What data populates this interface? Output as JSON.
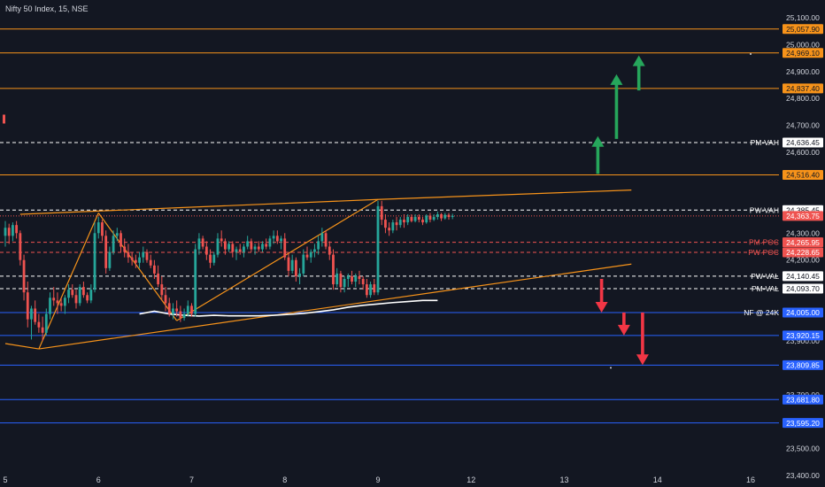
{
  "header": {
    "title": "Nifty 50 Index, 15, NSE"
  },
  "colors": {
    "background": "#131722",
    "up": "#26a69a",
    "down": "#ef5350",
    "orange": "#f7931a",
    "blue": "#2962ff",
    "green": "#26a65b",
    "red": "#f23645",
    "white": "#ffffff",
    "text": "#d1d4dc"
  },
  "chart_data": {
    "type": "candlestick",
    "ylim": [
      23350,
      25150
    ],
    "y_ticks": [
      {
        "v": 25100,
        "label": "25,100.00"
      },
      {
        "v": 25000,
        "label": "25,000.00"
      },
      {
        "v": 24900,
        "label": "24,900.00"
      },
      {
        "v": 24800,
        "label": "24,800.00"
      },
      {
        "v": 24700,
        "label": "24,700.00"
      },
      {
        "v": 24600,
        "label": "24,600.00"
      },
      {
        "v": 24300,
        "label": "24,300.00"
      },
      {
        "v": 24200,
        "label": "24,200.00"
      },
      {
        "v": 23900,
        "label": "23,900.00"
      },
      {
        "v": 23700,
        "label": "23,700.00"
      },
      {
        "v": 23600,
        "label": "23,600.00"
      },
      {
        "v": 23500,
        "label": "23,500.00"
      },
      {
        "v": 23400,
        "label": "23,400.00"
      }
    ],
    "x_ticks": [
      {
        "i": 0,
        "label": "5"
      },
      {
        "i": 25,
        "label": "6"
      },
      {
        "i": 50,
        "label": "7"
      },
      {
        "i": 75,
        "label": "8"
      },
      {
        "i": 100,
        "label": "9"
      },
      {
        "i": 125,
        "label": "12"
      },
      {
        "i": 150,
        "label": "13"
      },
      {
        "i": 175,
        "label": "14"
      },
      {
        "i": 200,
        "label": "16"
      }
    ],
    "levels": [
      {
        "v": 25057.9,
        "label": "25,057.90",
        "name": "",
        "color": "#f7931a",
        "style": "solid",
        "label_style": "fill"
      },
      {
        "v": 24969.1,
        "label": "24,969.10",
        "name": "",
        "color": "#f7931a",
        "style": "solid",
        "label_style": "fill"
      },
      {
        "v": 24837.4,
        "label": "24,837.40",
        "name": "",
        "color": "#f7931a",
        "style": "solid",
        "label_style": "fill"
      },
      {
        "v": 24636.45,
        "label": "24,636.45",
        "name": "PM-VAH",
        "color": "#ffffff",
        "style": "dashed",
        "label_style": "outline"
      },
      {
        "v": 24516.4,
        "label": "24,516.40",
        "name": "",
        "color": "#f7931a",
        "style": "solid",
        "label_style": "fill"
      },
      {
        "v": 24385.45,
        "label": "24,385.45",
        "name": "PW-VAH",
        "color": "#ffffff",
        "style": "dashed",
        "label_style": "outline"
      },
      {
        "v": 24363.75,
        "label": "24,363.75",
        "name": "",
        "color": "#ef5350",
        "style": "dotted",
        "label_style": "fill"
      },
      {
        "v": 24265.95,
        "label": "24,265.95",
        "name": "PM-POC",
        "color": "#ef5350",
        "style": "dashed",
        "label_style": "fill"
      },
      {
        "v": 24228.65,
        "label": "24,228.65",
        "name": "PW-POC",
        "color": "#ef5350",
        "style": "dashed",
        "label_style": "fill"
      },
      {
        "v": 24140.45,
        "label": "24,140.45",
        "name": "PW-VAL",
        "color": "#ffffff",
        "style": "dashed",
        "label_style": "outline"
      },
      {
        "v": 24093.7,
        "label": "24,093.70",
        "name": "PM-VAL",
        "color": "#ffffff",
        "style": "dashed",
        "label_style": "outline"
      },
      {
        "v": 24005.0,
        "label": "24,005.00",
        "name": "NF @ 24K",
        "color": "#2962ff",
        "style": "solid",
        "label_style": "fill"
      },
      {
        "v": 23920.15,
        "label": "23,920.15",
        "name": "",
        "color": "#2962ff",
        "style": "solid",
        "label_style": "fill"
      },
      {
        "v": 23809.85,
        "label": "23,809.85",
        "name": "",
        "color": "#2962ff",
        "style": "solid",
        "label_style": "fill"
      },
      {
        "v": 23681.8,
        "label": "23,681.80",
        "name": "",
        "color": "#2962ff",
        "style": "solid",
        "label_style": "fill"
      },
      {
        "v": 23595.2,
        "label": "23,595.20",
        "name": "",
        "color": "#2962ff",
        "style": "solid",
        "label_style": "fill"
      }
    ],
    "candles": [
      [
        24290,
        24345,
        24250,
        24320
      ],
      [
        24320,
        24335,
        24260,
        24290
      ],
      [
        24290,
        24340,
        24270,
        24330
      ],
      [
        24330,
        24345,
        24280,
        24300
      ],
      [
        24300,
        24310,
        24180,
        24200
      ],
      [
        24200,
        24220,
        24050,
        24080
      ],
      [
        24080,
        24120,
        23950,
        23980
      ],
      [
        23980,
        24030,
        23905,
        24020
      ],
      [
        24020,
        24050,
        23960,
        23970
      ],
      [
        23970,
        24000,
        23930,
        23950
      ],
      [
        23950,
        23990,
        23900,
        23930
      ],
      [
        23930,
        24020,
        23920,
        24000
      ],
      [
        24000,
        24080,
        23980,
        24060
      ],
      [
        24060,
        24100,
        24030,
        24050
      ],
      [
        24050,
        24080,
        24000,
        24040
      ],
      [
        24040,
        24060,
        24010,
        24030
      ],
      [
        24030,
        24070,
        24000,
        24060
      ],
      [
        24060,
        24110,
        24040,
        24090
      ],
      [
        24090,
        24110,
        24060,
        24070
      ],
      [
        24070,
        24090,
        24020,
        24040
      ],
      [
        24040,
        24110,
        24030,
        24100
      ],
      [
        24100,
        24120,
        24060,
        24070
      ],
      [
        24070,
        24080,
        24040,
        24050
      ],
      [
        24050,
        24110,
        24040,
        24090
      ],
      [
        24090,
        24340,
        24080,
        24300
      ],
      [
        24300,
        24360,
        24280,
        24340
      ],
      [
        24340,
        24350,
        24270,
        24290
      ],
      [
        24290,
        24310,
        24150,
        24170
      ],
      [
        24170,
        24250,
        24160,
        24230
      ],
      [
        24230,
        24310,
        24220,
        24290
      ],
      [
        24290,
        24320,
        24270,
        24300
      ],
      [
        24300,
        24310,
        24230,
        24250
      ],
      [
        24250,
        24280,
        24210,
        24230
      ],
      [
        24230,
        24260,
        24190,
        24210
      ],
      [
        24210,
        24230,
        24180,
        24200
      ],
      [
        24200,
        24220,
        24170,
        24190
      ],
      [
        24190,
        24230,
        24170,
        24210
      ],
      [
        24210,
        24250,
        24190,
        24230
      ],
      [
        24230,
        24240,
        24190,
        24200
      ],
      [
        24200,
        24220,
        24170,
        24180
      ],
      [
        24180,
        24200,
        24130,
        24150
      ],
      [
        24150,
        24180,
        24100,
        24110
      ],
      [
        24110,
        24140,
        24050,
        24070
      ],
      [
        24070,
        24100,
        24010,
        24040
      ],
      [
        24040,
        24060,
        23990,
        24000
      ],
      [
        24000,
        24040,
        23980,
        24020
      ],
      [
        24020,
        24050,
        23990,
        24010
      ],
      [
        24010,
        24030,
        23970,
        23985
      ],
      [
        23985,
        24020,
        23975,
        24000
      ],
      [
        24000,
        24050,
        23990,
        24030
      ],
      [
        24030,
        24040,
        23990,
        24000
      ],
      [
        24000,
        24260,
        23990,
        24240
      ],
      [
        24240,
        24300,
        24220,
        24280
      ],
      [
        24280,
        24290,
        24240,
        24250
      ],
      [
        24250,
        24270,
        24200,
        24220
      ],
      [
        24220,
        24240,
        24170,
        24190
      ],
      [
        24190,
        24230,
        24180,
        24220
      ],
      [
        24220,
        24300,
        24210,
        24280
      ],
      [
        24280,
        24310,
        24250,
        24270
      ],
      [
        24270,
        24280,
        24220,
        24240
      ],
      [
        24240,
        24270,
        24230,
        24260
      ],
      [
        24260,
        24270,
        24210,
        24230
      ],
      [
        24230,
        24250,
        24200,
        24240
      ],
      [
        24240,
        24260,
        24220,
        24230
      ],
      [
        24230,
        24260,
        24210,
        24250
      ],
      [
        24250,
        24290,
        24240,
        24270
      ],
      [
        24270,
        24280,
        24230,
        24240
      ],
      [
        24240,
        24260,
        24220,
        24250
      ],
      [
        24250,
        24270,
        24230,
        24240
      ],
      [
        24240,
        24270,
        24230,
        24260
      ],
      [
        24260,
        24280,
        24240,
        24250
      ],
      [
        24250,
        24290,
        24240,
        24280
      ],
      [
        24280,
        24310,
        24260,
        24290
      ],
      [
        24290,
        24310,
        24260,
        24270
      ],
      [
        24270,
        24290,
        24240,
        24280
      ],
      [
        24280,
        24300,
        24200,
        24210
      ],
      [
        24210,
        24230,
        24140,
        24160
      ],
      [
        24160,
        24220,
        24150,
        24200
      ],
      [
        24200,
        24210,
        24120,
        24140
      ],
      [
        24140,
        24170,
        24110,
        24150
      ],
      [
        24150,
        24240,
        24140,
        24220
      ],
      [
        24220,
        24250,
        24200,
        24210
      ],
      [
        24210,
        24240,
        24190,
        24230
      ],
      [
        24230,
        24260,
        24210,
        24240
      ],
      [
        24240,
        24290,
        24220,
        24270
      ],
      [
        24270,
        24320,
        24250,
        24300
      ],
      [
        24300,
        24310,
        24240,
        24250
      ],
      [
        24250,
        24270,
        24200,
        24220
      ],
      [
        24220,
        24240,
        24090,
        24110
      ],
      [
        24110,
        24170,
        24100,
        24150
      ],
      [
        24150,
        24160,
        24080,
        24100
      ],
      [
        24100,
        24140,
        24080,
        24130
      ],
      [
        24130,
        24150,
        24100,
        24140
      ],
      [
        24140,
        24160,
        24110,
        24120
      ],
      [
        24120,
        24150,
        24100,
        24140
      ],
      [
        24140,
        24160,
        24110,
        24130
      ],
      [
        24130,
        24140,
        24090,
        24110
      ],
      [
        24110,
        24130,
        24060,
        24070
      ],
      [
        24070,
        24120,
        24060,
        24110
      ],
      [
        24110,
        24130,
        24070,
        24080
      ],
      [
        24080,
        24420,
        24070,
        24400
      ],
      [
        24400,
        24420,
        24330,
        24350
      ],
      [
        24350,
        24370,
        24300,
        24320
      ],
      [
        24320,
        24340,
        24290,
        24310
      ],
      [
        24310,
        24350,
        24300,
        24340
      ],
      [
        24340,
        24360,
        24310,
        24330
      ],
      [
        24330,
        24360,
        24320,
        24350
      ],
      [
        24350,
        24370,
        24320,
        24340
      ],
      [
        24340,
        24370,
        24330,
        24360
      ],
      [
        24360,
        24370,
        24340,
        24345
      ],
      [
        24345,
        24370,
        24340,
        24360
      ],
      [
        24360,
        24370,
        24340,
        24350
      ],
      [
        24350,
        24360,
        24330,
        24340
      ],
      [
        24340,
        24370,
        24335,
        24365
      ],
      [
        24365,
        24375,
        24340,
        24350
      ],
      [
        24350,
        24370,
        24345,
        24360
      ],
      [
        24360,
        24380,
        24350,
        24370
      ],
      [
        24370,
        24375,
        24345,
        24355
      ],
      [
        24355,
        24375,
        24350,
        24368
      ],
      [
        24368,
        24375,
        24350,
        24360
      ],
      [
        24360,
        24372,
        24352,
        24364
      ]
    ],
    "white_line": [
      [
        36,
        24000
      ],
      [
        40,
        24010
      ],
      [
        44,
        24000
      ],
      [
        48,
        23995
      ],
      [
        52,
        23992
      ],
      [
        56,
        23995
      ],
      [
        60,
        23993
      ],
      [
        64,
        23993
      ],
      [
        68,
        23993
      ],
      [
        72,
        23995
      ],
      [
        76,
        23998
      ],
      [
        80,
        24002
      ],
      [
        84,
        24008
      ],
      [
        88,
        24015
      ],
      [
        92,
        24025
      ],
      [
        96,
        24032
      ],
      [
        100,
        24037
      ],
      [
        104,
        24042
      ],
      [
        108,
        24046
      ],
      [
        112,
        24050
      ],
      [
        116,
        24050
      ]
    ],
    "trendlines": [
      [
        0,
        23890,
        9,
        23870,
        "#f7931a"
      ],
      [
        9,
        23870,
        25,
        24375,
        "#f7931a"
      ],
      [
        25,
        24375,
        46,
        23975,
        "#f7931a"
      ],
      [
        46,
        23975,
        100,
        24425,
        "#f7931a"
      ],
      [
        4,
        24370,
        100,
        24425,
        "#f7931a"
      ],
      [
        100,
        24425,
        168,
        24460,
        "#f7931a"
      ],
      [
        9,
        23870,
        168,
        24185,
        "#f7931a"
      ]
    ],
    "arrows": [
      {
        "i": 159,
        "v1": 24520,
        "v2": 24660,
        "dir": "up",
        "color": "#26a65b"
      },
      {
        "i": 164,
        "v1": 24650,
        "v2": 24890,
        "dir": "up",
        "color": "#26a65b"
      },
      {
        "i": 170,
        "v1": 24830,
        "v2": 24960,
        "dir": "up",
        "color": "#26a65b"
      },
      {
        "i": 160,
        "v1": 24130,
        "v2": 24005,
        "dir": "down",
        "color": "#f23645"
      },
      {
        "i": 166,
        "v1": 24005,
        "v2": 23920,
        "dir": "down",
        "color": "#f23645"
      },
      {
        "i": 171,
        "v1": 24005,
        "v2": 23810,
        "dir": "down",
        "color": "#f23645"
      }
    ]
  }
}
